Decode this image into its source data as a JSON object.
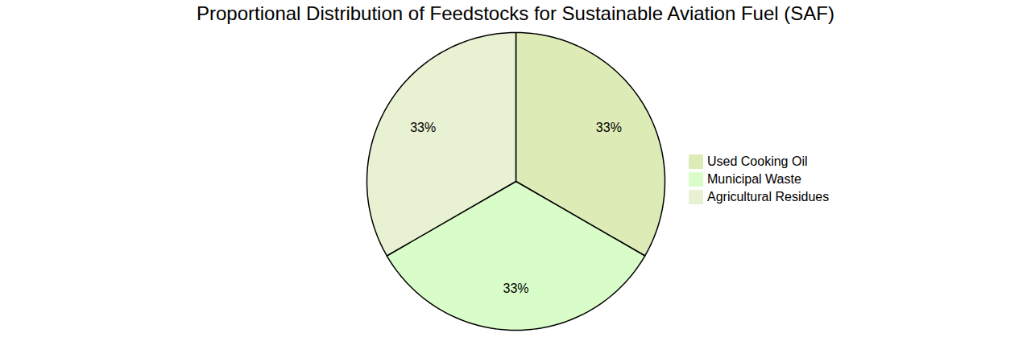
{
  "chart_data": {
    "type": "pie",
    "title": "Proportional Distribution of Feedstocks for Sustainable Aviation Fuel (SAF)",
    "categories": [
      "Used Cooking Oil",
      "Municipal Waste",
      "Agricultural Residues"
    ],
    "values": [
      33,
      33,
      33
    ],
    "value_labels": [
      "33%",
      "33%",
      "33%"
    ],
    "colors": [
      "#ddecb7",
      "#d9fdc8",
      "#e8f2d2"
    ],
    "data_labels": true,
    "legend": "right"
  }
}
